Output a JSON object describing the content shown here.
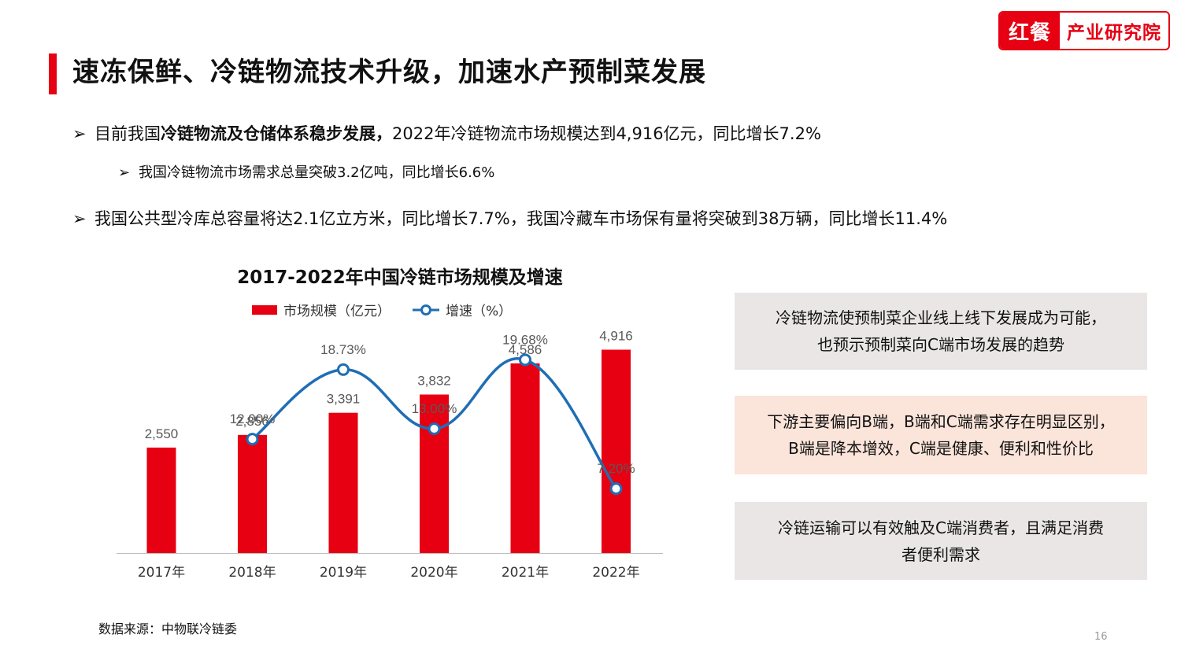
{
  "header": {
    "title": "速冻保鲜、冷链物流技术升级，加速水产预制菜发展",
    "accent_color": "#e60012",
    "logo_brand": "红餐",
    "logo_sub": "产业研究院"
  },
  "bullets": {
    "b1_plain1": "目前我国",
    "b1_bold": "冷链物流及仓储体系稳步发展，",
    "b1_plain2": "2022年冷链物流市场规模达到4,916亿元，同比增长7.2%",
    "b2": "我国冷链物流市场需求总量突破3.2亿吨，同比增长6.6%",
    "b3": "我国公共型冷库总容量将达2.1亿立方米，同比增长7.7%，我国冷藏车市场保有量将突破到38万辆，同比增长11.4%",
    "arrow_glyph": "➢"
  },
  "chart_data": {
    "type": "bar",
    "title": "2017-2022年中国冷链市场规模及增速",
    "categories": [
      "2017年",
      "2018年",
      "2019年",
      "2020年",
      "2021年",
      "2022年"
    ],
    "series": [
      {
        "name": "市场规模（亿元）",
        "kind": "bar",
        "color": "#e60012",
        "values": [
          2550,
          2856,
          3391,
          3832,
          4586,
          4916
        ],
        "labels": [
          "2,550",
          "2,856",
          "3,391",
          "3,832",
          "4,586",
          "4,916"
        ]
      },
      {
        "name": "增速（%）",
        "kind": "line",
        "color": "#1f6eb5",
        "values": [
          null,
          12.0,
          18.73,
          13.0,
          19.68,
          7.2
        ],
        "labels": [
          "",
          "12.00%",
          "18.73%",
          "13.00%",
          "19.68%",
          "7.20%"
        ]
      }
    ],
    "ylim_bar": [
      0,
      5800
    ],
    "ylim_line": [
      0,
      25
    ],
    "grid": false,
    "legend": "top"
  },
  "notes": {
    "box1_line1": "冷链物流使预制菜企业线上线下发展成为可能，",
    "box1_line2": "也预示预制菜向C端市场发展的趋势",
    "box2_line1": "下游主要偏向B端，B端和C端需求存在明显区别，",
    "box2_line2": "B端是降本增效，C端是健康、便利和性价比",
    "box3_line1": "冷链运输可以有效触及C端消费者，且满足消费",
    "box3_line2": "者便利需求"
  },
  "footer": {
    "source": "数据来源：中物联冷链委",
    "page": "16"
  }
}
